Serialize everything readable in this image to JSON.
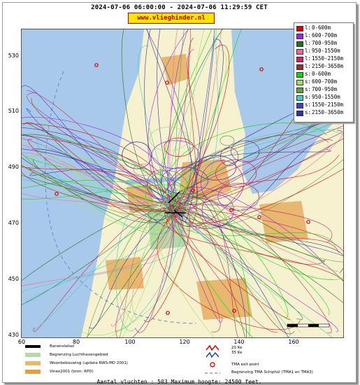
{
  "header": {
    "title": "2024-07-06 06:00:00 - 2024-07-06 11:29:59 CET",
    "brand": "www.vlieghinder.nl"
  },
  "axes": {
    "y_ticks": [
      "530",
      "510",
      "490",
      "470",
      "450",
      "430"
    ],
    "x_ticks": [
      "60",
      "80",
      "100",
      "120",
      "140",
      "160"
    ]
  },
  "legend": {
    "items": [
      {
        "key": "l:",
        "range": "0-600m",
        "color": "#e00000"
      },
      {
        "key": "l:",
        "range": "600-700m",
        "color": "#a020f0"
      },
      {
        "key": "l:",
        "range": "700-950m",
        "color": "#207020"
      },
      {
        "key": "l:",
        "range": "950-1550m",
        "color": "#ff60a0"
      },
      {
        "key": "l:",
        "range": "1550-2150m",
        "color": "#d02060"
      },
      {
        "key": "l:",
        "range": "2150-3650m",
        "color": "#a02828"
      },
      {
        "key": "s:",
        "range": "0-600m",
        "color": "#00e000"
      },
      {
        "key": "s:",
        "range": "600-700m",
        "color": "#a0e060"
      },
      {
        "key": "s:",
        "range": "700-950m",
        "color": "#60a040"
      },
      {
        "key": "s:",
        "range": "950-1550m",
        "color": "#40d0c0"
      },
      {
        "key": "s:",
        "range": "1550-2150m",
        "color": "#4040c0"
      },
      {
        "key": "s:",
        "range": "2150-3650m",
        "color": "#3030a0"
      }
    ]
  },
  "map_legend": {
    "runway": "Banenstelsel",
    "airport_boundary": "Begrenzing Luchthavengebied",
    "housing": "Woonbebouwing (update RWS-MD 2001)",
    "vinex": "Vinex2001 (bron: RPD)",
    "ke20": "20 Ke",
    "ke35": "35 Ke",
    "tma_exit": "TMA exit point",
    "tma_boundary": "Begrenzing TMA Schiphol  (TMA1 en TMA3)"
  },
  "footer": "Aantal vluchten : 503 Maximum hoogte: 24500 feet.",
  "colors": {
    "land": "#f6f1cf",
    "water": "#a9c9ea",
    "urban": "#e8b870",
    "green": "#b8d8a8",
    "exit_point": "#d00000"
  }
}
